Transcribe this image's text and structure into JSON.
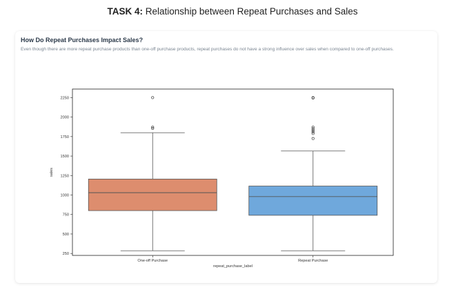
{
  "header": {
    "task_label": "TASK 4:",
    "task_title": "Relationship between Repeat Purchases and Sales"
  },
  "card": {
    "heading": "How Do Repeat Purchases Impact Sales?",
    "description": "Even though there are more repeat purchase products than one-off purchase products, repeat purchases do not have a strong influence over sales when compared to one-off purchases."
  },
  "chart_data": {
    "type": "boxplot",
    "xlabel": "repeat_purchase_label",
    "ylabel": "sales",
    "ylim": [
      225,
      2360
    ],
    "yticks": [
      250,
      500,
      750,
      1000,
      1250,
      1500,
      1750,
      2000,
      2250
    ],
    "grid": false,
    "categories": [
      "One-off Purchase",
      "Repeat Purchase"
    ],
    "boxes": [
      {
        "category": "One-off Purchase",
        "color": "#dd8d6e",
        "whisker_low": 285,
        "q1": 800,
        "median": 1030,
        "q3": 1205,
        "whisker_high": 1800,
        "outliers": [
          1855,
          1870,
          2250
        ]
      },
      {
        "category": "Repeat Purchase",
        "color": "#6fa8dc",
        "whisker_low": 285,
        "q1": 740,
        "median": 980,
        "q3": 1115,
        "whisker_high": 1565,
        "outliers": [
          1725,
          1790,
          1810,
          1830,
          1850,
          1870,
          2245,
          2250
        ]
      }
    ]
  }
}
